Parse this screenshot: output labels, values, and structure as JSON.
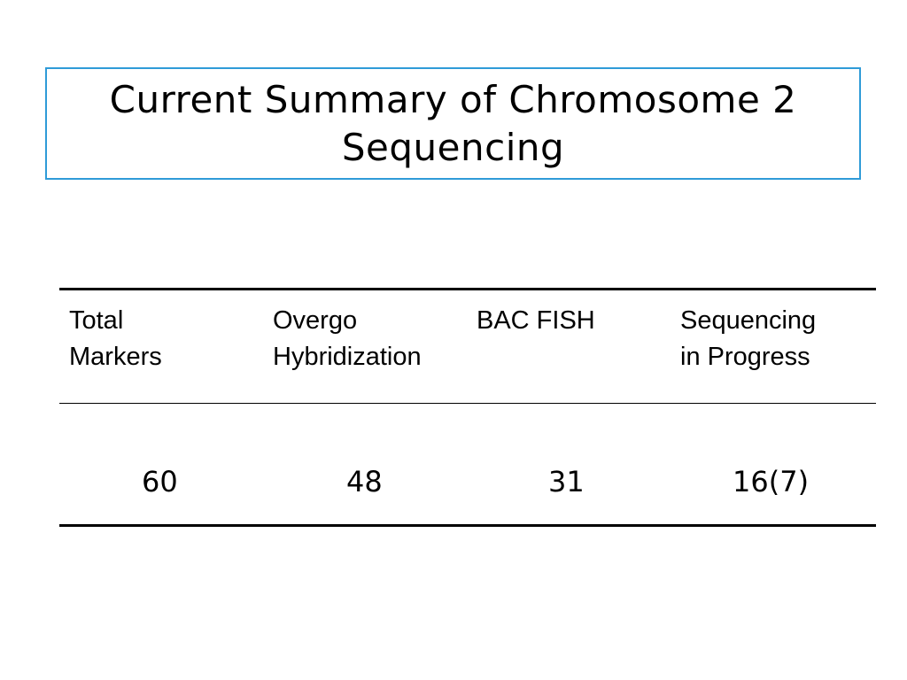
{
  "title": {
    "line1": "Current Summary of Chromosome 2",
    "line2": "Sequencing"
  },
  "table": {
    "headers": [
      {
        "line1": "Total",
        "line2": "Markers"
      },
      {
        "line1": "Overgo",
        "line2": "Hybridization"
      },
      {
        "line1": "BAC FISH",
        "line2": ""
      },
      {
        "line1": "Sequencing",
        "line2": "in Progress"
      }
    ],
    "values": [
      "60",
      "48",
      "31",
      "16(7)"
    ]
  },
  "colors": {
    "title_border": "#2f9bd8",
    "text": "#000000",
    "background": "#ffffff"
  }
}
